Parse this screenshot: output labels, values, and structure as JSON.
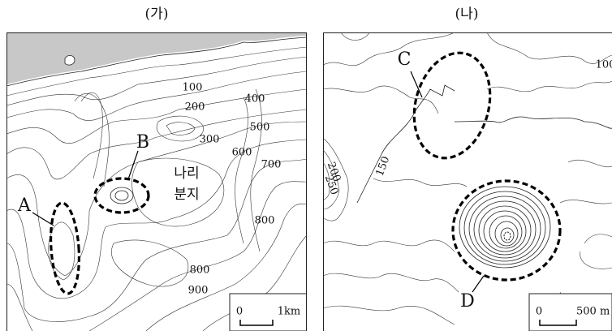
{
  "panels": [
    {
      "title": "(가)",
      "markers": [
        "A",
        "B"
      ],
      "place": [
        "나리",
        "분지"
      ],
      "contour_labels": [
        "100",
        "200",
        "300",
        "400",
        "500",
        "600",
        "700",
        "800",
        "800",
        "900"
      ],
      "scale": {
        "zero": "0",
        "length": "1km"
      }
    },
    {
      "title": "(나)",
      "markers": [
        "C",
        "D"
      ],
      "contour_labels": [
        "150",
        "200",
        "250",
        "100"
      ],
      "scale": {
        "zero": "0",
        "length": "500 m"
      }
    }
  ]
}
